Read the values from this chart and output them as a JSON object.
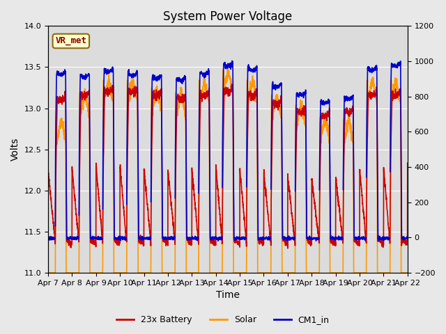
{
  "title": "System Power Voltage",
  "xlabel": "Time",
  "ylabel": "Volts",
  "ylim_left": [
    11.0,
    14.0
  ],
  "ylim_right": [
    -200,
    1200
  ],
  "x_tick_labels": [
    "Apr 7",
    "Apr 8",
    "Apr 9",
    "Apr 10",
    "Apr 11",
    "Apr 12",
    "Apr 13",
    "Apr 14",
    "Apr 15",
    "Apr 16",
    "Apr 17",
    "Apr 18",
    "Apr 19",
    "Apr 20",
    "Apr 21",
    "Apr 22"
  ],
  "background_color": "#e8e8e8",
  "plot_bg_color": "#dcdcdc",
  "legend_items": [
    {
      "label": "23x Battery",
      "color": "#cc0000",
      "lw": 1.2
    },
    {
      "label": "Solar",
      "color": "#ff9900",
      "lw": 1.2
    },
    {
      "label": "CM1_in",
      "color": "#0000cc",
      "lw": 1.2
    }
  ],
  "annotation_text": "VR_met",
  "title_fontsize": 12,
  "axis_fontsize": 10,
  "tick_fontsize": 8,
  "yticks_left": [
    11.0,
    11.5,
    12.0,
    12.5,
    13.0,
    13.5,
    14.0
  ],
  "yticks_right": [
    -200,
    0,
    200,
    400,
    600,
    800,
    1000,
    1200
  ],
  "solar_peaks": [
    0.62,
    0.73,
    0.78,
    0.78,
    0.75,
    0.73,
    0.78,
    0.82,
    0.78,
    0.72,
    0.68,
    0.63,
    0.62,
    0.78,
    0.78
  ],
  "battery_highs": [
    13.15,
    13.2,
    13.25,
    13.25,
    13.2,
    13.15,
    13.2,
    13.25,
    13.2,
    13.1,
    13.0,
    12.95,
    13.0,
    13.2,
    13.2
  ],
  "cm1_highs": [
    13.45,
    13.42,
    13.48,
    13.44,
    13.4,
    13.38,
    13.45,
    13.55,
    13.5,
    13.3,
    13.2,
    13.1,
    13.15,
    13.5,
    13.55
  ]
}
